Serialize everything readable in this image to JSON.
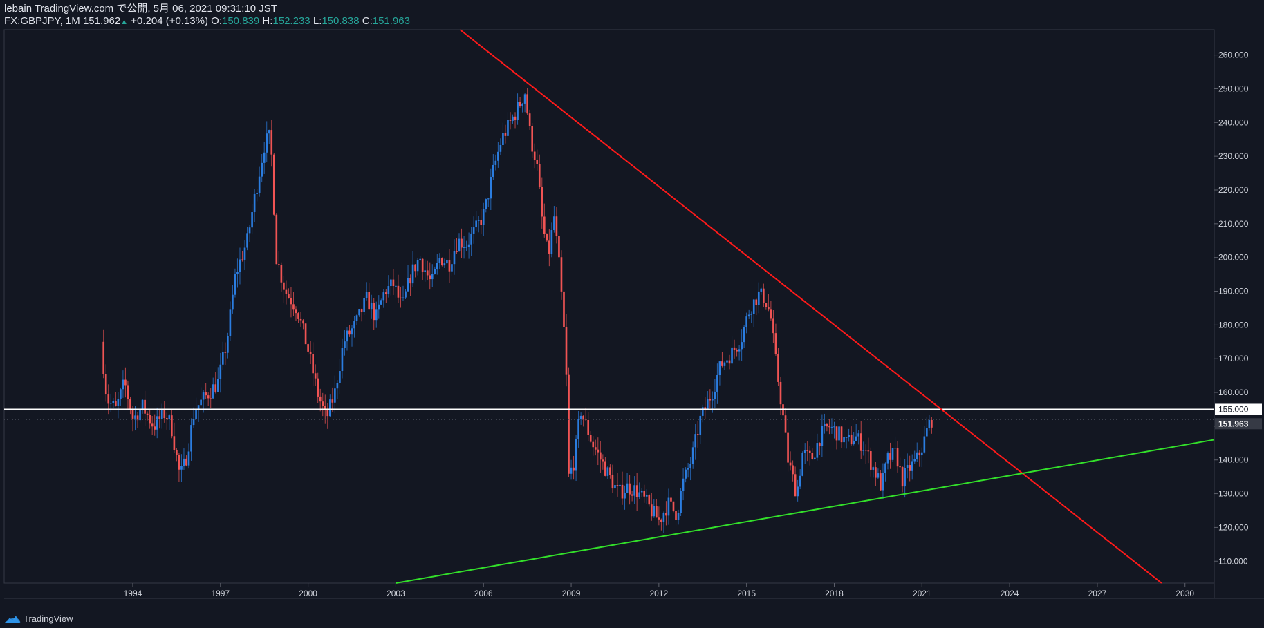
{
  "header": {
    "line1": "lebain TradingView.com で公開, 5月 06, 2021 09:31:10 JST",
    "symbol": "FX:GBPJPY, 1M",
    "last": "151.962",
    "change": "+0.204 (+0.13%)",
    "o_label": "O:",
    "o_value": "150.839",
    "h_label": "H:",
    "h_value": "152.233",
    "l_label": "L:",
    "l_value": "150.838",
    "c_label": "C:",
    "c_value": "151.963"
  },
  "footer": {
    "brand": "TradingView"
  },
  "colors": {
    "background": "#131722",
    "up": "#2b7de0",
    "down": "#f05454",
    "resistance": "#ff1a1a",
    "support": "#33e02a",
    "level": "#ffffff",
    "axis_text": "#d1d4dc",
    "grid": "#2a2e39"
  },
  "chart_data": {
    "type": "candlestick",
    "symbol": "FX:GBPJPY",
    "interval": "1M",
    "x_ticks": [
      "1994",
      "1997",
      "2000",
      "2003",
      "2006",
      "2009",
      "2012",
      "2015",
      "2018",
      "2021",
      "2024",
      "2027",
      "2030"
    ],
    "y_ticks": [
      "110.000",
      "120.000",
      "130.000",
      "140.000",
      "150.000",
      "160.000",
      "170.000",
      "180.000",
      "190.000",
      "200.000",
      "210.000",
      "220.000",
      "230.000",
      "240.000",
      "250.000",
      "260.000"
    ],
    "xlim": [
      1989.6,
      2031.0
    ],
    "ylim": [
      103.5,
      267.5
    ],
    "last_price_label": "151.963",
    "level_label": "155.000",
    "horizontal_level": 155.0,
    "trendlines": [
      {
        "type": "resistance",
        "points": [
          [
            2005.2,
            267.5
          ],
          [
            2029.2,
            103.5
          ]
        ]
      },
      {
        "type": "support",
        "points": [
          [
            2003.0,
            103.5
          ],
          [
            2031.0,
            146.0
          ]
        ]
      }
    ],
    "price_path": [
      [
        1993.0,
        175
      ],
      [
        1993.2,
        158
      ],
      [
        1993.5,
        155
      ],
      [
        1993.8,
        163
      ],
      [
        1994.1,
        152
      ],
      [
        1994.4,
        156
      ],
      [
        1994.8,
        150
      ],
      [
        1995.2,
        154
      ],
      [
        1995.4,
        150
      ],
      [
        1995.7,
        135
      ],
      [
        1995.9,
        140
      ],
      [
        1996.2,
        155
      ],
      [
        1996.6,
        159
      ],
      [
        1997.0,
        163
      ],
      [
        1997.3,
        175
      ],
      [
        1997.6,
        195
      ],
      [
        1998.0,
        205
      ],
      [
        1998.3,
        220
      ],
      [
        1998.6,
        234
      ],
      [
        1998.8,
        236
      ],
      [
        1999.0,
        200
      ],
      [
        1999.3,
        190
      ],
      [
        1999.7,
        185
      ],
      [
        2000.1,
        172
      ],
      [
        2000.4,
        160
      ],
      [
        2000.7,
        152
      ],
      [
        2001.0,
        160
      ],
      [
        2001.3,
        175
      ],
      [
        2001.7,
        180
      ],
      [
        2002.1,
        188
      ],
      [
        2002.4,
        182
      ],
      [
        2002.7,
        190
      ],
      [
        2003.0,
        192
      ],
      [
        2003.3,
        185
      ],
      [
        2003.6,
        195
      ],
      [
        2003.9,
        200
      ],
      [
        2004.3,
        192
      ],
      [
        2004.6,
        200
      ],
      [
        2004.9,
        198
      ],
      [
        2005.2,
        205
      ],
      [
        2005.5,
        204
      ],
      [
        2005.8,
        208
      ],
      [
        2006.1,
        213
      ],
      [
        2006.4,
        225
      ],
      [
        2006.7,
        235
      ],
      [
        2007.0,
        240
      ],
      [
        2007.3,
        245
      ],
      [
        2007.5,
        249
      ],
      [
        2007.7,
        235
      ],
      [
        2007.9,
        228
      ],
      [
        2008.1,
        210
      ],
      [
        2008.3,
        200
      ],
      [
        2008.5,
        212
      ],
      [
        2008.7,
        195
      ],
      [
        2008.9,
        170
      ],
      [
        2009.0,
        135
      ],
      [
        2009.2,
        140
      ],
      [
        2009.4,
        155
      ],
      [
        2009.6,
        150
      ],
      [
        2009.8,
        145
      ],
      [
        2010.1,
        140
      ],
      [
        2010.4,
        135
      ],
      [
        2010.7,
        130
      ],
      [
        2011.0,
        132
      ],
      [
        2011.3,
        131
      ],
      [
        2011.6,
        128
      ],
      [
        2011.9,
        124
      ],
      [
        2012.1,
        122
      ],
      [
        2012.4,
        127
      ],
      [
        2012.7,
        124
      ],
      [
        2012.9,
        133
      ],
      [
        2013.2,
        140
      ],
      [
        2013.5,
        152
      ],
      [
        2013.9,
        160
      ],
      [
        2014.2,
        168
      ],
      [
        2014.6,
        172
      ],
      [
        2014.9,
        176
      ],
      [
        2015.2,
        185
      ],
      [
        2015.5,
        189
      ],
      [
        2015.7,
        188
      ],
      [
        2015.9,
        183
      ],
      [
        2016.1,
        168
      ],
      [
        2016.3,
        155
      ],
      [
        2016.5,
        140
      ],
      [
        2016.8,
        130
      ],
      [
        2017.0,
        142
      ],
      [
        2017.3,
        140
      ],
      [
        2017.6,
        147
      ],
      [
        2017.9,
        150
      ],
      [
        2018.2,
        148
      ],
      [
        2018.5,
        145
      ],
      [
        2018.8,
        147
      ],
      [
        2019.1,
        144
      ],
      [
        2019.4,
        138
      ],
      [
        2019.7,
        132
      ],
      [
        2019.9,
        140
      ],
      [
        2020.2,
        142
      ],
      [
        2020.4,
        134
      ],
      [
        2020.7,
        138
      ],
      [
        2020.9,
        140
      ],
      [
        2021.1,
        144
      ],
      [
        2021.3,
        150
      ],
      [
        2021.4,
        152
      ]
    ]
  }
}
